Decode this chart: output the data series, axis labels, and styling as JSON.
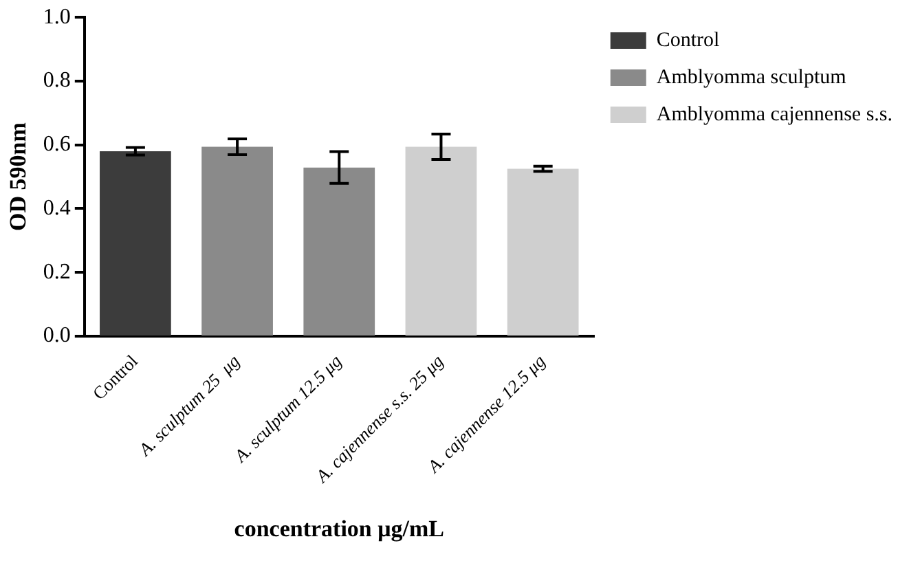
{
  "chart_data": {
    "type": "bar",
    "xlabel": "concentration μg/mL",
    "ylabel": "OD 590nm",
    "categories": [
      "Control",
      "A. sculptum 25  μg",
      "A. sculptum 12.5 μg",
      "A. cajennense s.s. 25 μg",
      "A. cajennense 12.5 μg"
    ],
    "series": [
      {
        "name": "Control",
        "color": "#3c3c3c",
        "values": [
          0.58,
          null,
          null,
          null,
          null
        ],
        "errors": [
          0.012,
          null,
          null,
          null,
          null
        ]
      },
      {
        "name": "Amblyomma sculptum",
        "color": "#8a8a8a",
        "values": [
          null,
          0.594,
          0.529,
          null,
          null
        ],
        "errors": [
          null,
          0.025,
          0.05,
          null,
          null
        ]
      },
      {
        "name": "Amblyomma cajennense s.s.",
        "color": "#cfcfcf",
        "values": [
          null,
          null,
          null,
          0.594,
          0.525
        ],
        "errors": [
          null,
          null,
          null,
          0.04,
          0.008
        ]
      }
    ],
    "ylim": [
      0,
      1
    ],
    "yticks": [
      {
        "value": 0,
        "label": "0.0"
      },
      0.2,
      0.4,
      0.6,
      0.8,
      {
        "value": 1,
        "label": "1.0"
      }
    ],
    "grid": false,
    "legend": "top right"
  }
}
